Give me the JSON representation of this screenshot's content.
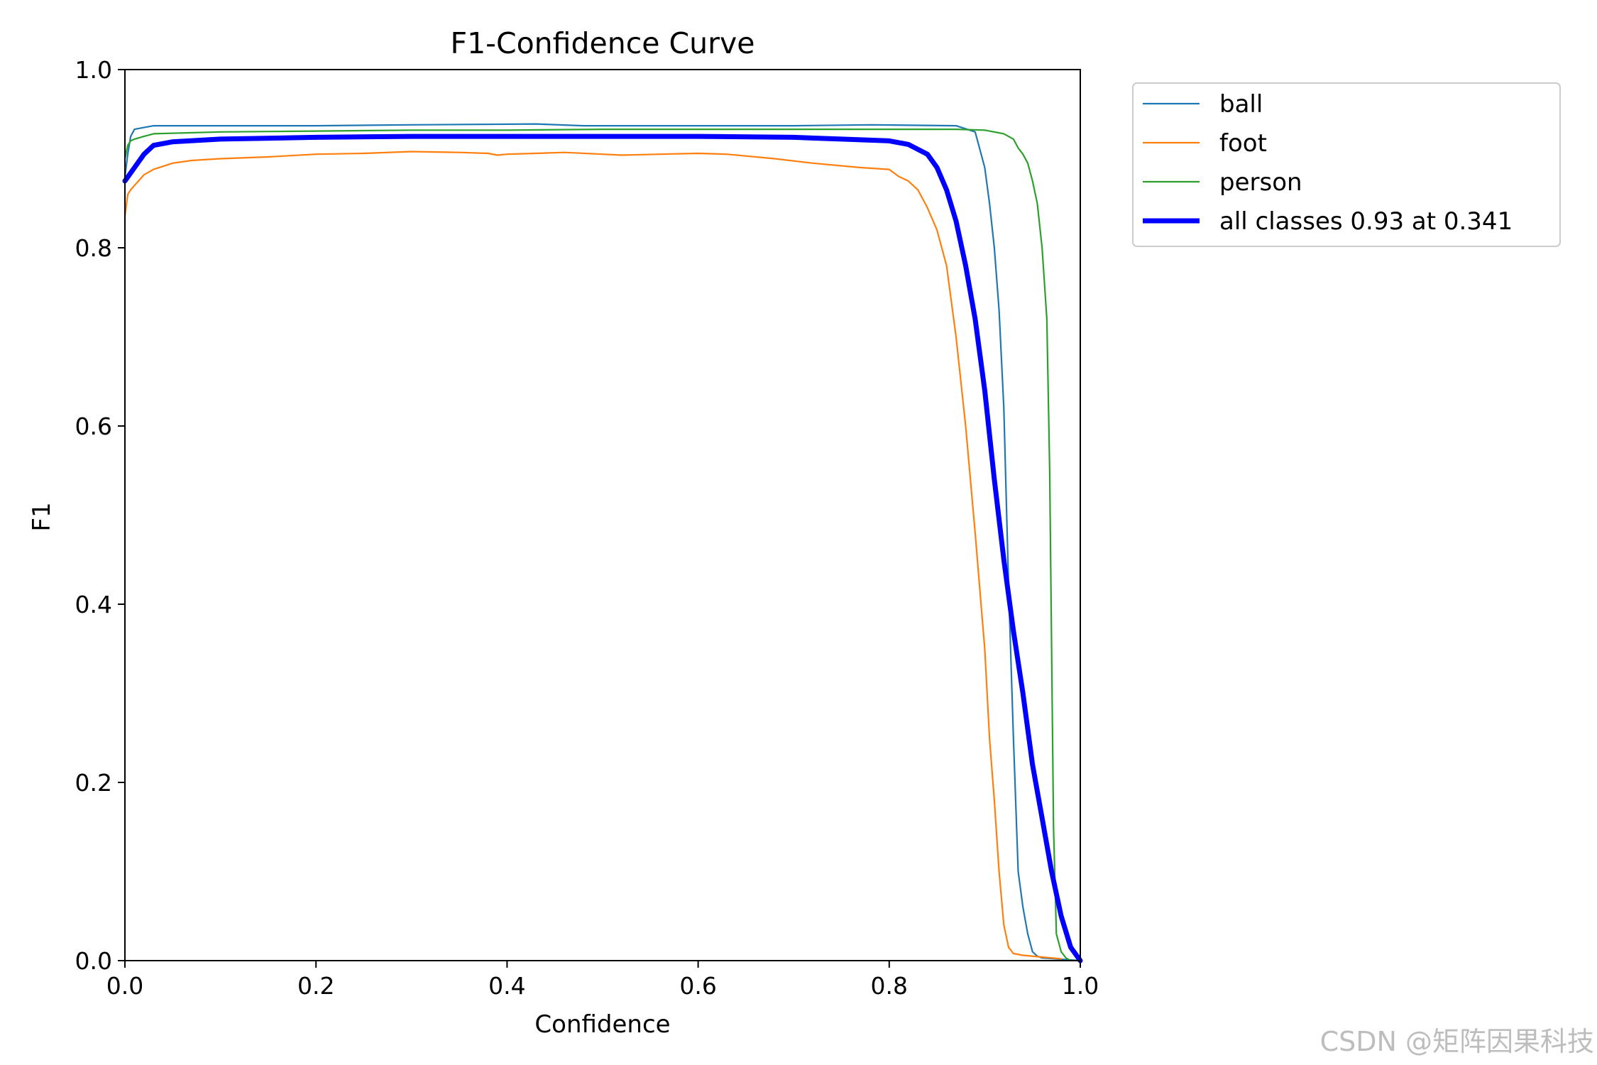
{
  "chart_data": {
    "type": "line",
    "title": "F1-Confidence Curve",
    "xlabel": "Confidence",
    "ylabel": "F1",
    "xlim": [
      0.0,
      1.0
    ],
    "ylim": [
      0.0,
      1.0
    ],
    "xticks": [
      "0.0",
      "0.2",
      "0.4",
      "0.6",
      "0.8",
      "1.0"
    ],
    "yticks": [
      "0.0",
      "0.2",
      "0.4",
      "0.6",
      "0.8",
      "1.0"
    ],
    "grid": false,
    "legend_position": "outside-top-right",
    "series": [
      {
        "name": "ball",
        "color": "#1f77b4",
        "line_width": "thin",
        "x": [
          0.0,
          0.003,
          0.006,
          0.01,
          0.02,
          0.03,
          0.1,
          0.2,
          0.3,
          0.43,
          0.48,
          0.6,
          0.7,
          0.78,
          0.87,
          0.89,
          0.895,
          0.9,
          0.905,
          0.91,
          0.915,
          0.92,
          0.925,
          0.93,
          0.935,
          0.94,
          0.945,
          0.95,
          0.955,
          0.96,
          1.0
        ],
        "y": [
          0.88,
          0.905,
          0.925,
          0.933,
          0.935,
          0.937,
          0.937,
          0.937,
          0.938,
          0.939,
          0.937,
          0.937,
          0.937,
          0.938,
          0.937,
          0.93,
          0.91,
          0.89,
          0.85,
          0.8,
          0.73,
          0.62,
          0.42,
          0.25,
          0.1,
          0.06,
          0.03,
          0.01,
          0.005,
          0.003,
          0.0
        ]
      },
      {
        "name": "foot",
        "color": "#ff7f0e",
        "line_width": "thin",
        "x": [
          0.0,
          0.003,
          0.006,
          0.01,
          0.02,
          0.03,
          0.05,
          0.07,
          0.1,
          0.15,
          0.2,
          0.25,
          0.3,
          0.35,
          0.38,
          0.39,
          0.4,
          0.43,
          0.46,
          0.5,
          0.52,
          0.56,
          0.6,
          0.63,
          0.68,
          0.72,
          0.77,
          0.8,
          0.81,
          0.82,
          0.83,
          0.84,
          0.85,
          0.86,
          0.87,
          0.88,
          0.89,
          0.9,
          0.905,
          0.91,
          0.915,
          0.92,
          0.925,
          0.93,
          0.94,
          0.96,
          0.98
        ],
        "y": [
          0.835,
          0.86,
          0.865,
          0.87,
          0.882,
          0.888,
          0.895,
          0.898,
          0.9,
          0.902,
          0.905,
          0.906,
          0.908,
          0.907,
          0.906,
          0.904,
          0.905,
          0.906,
          0.907,
          0.905,
          0.904,
          0.905,
          0.906,
          0.905,
          0.9,
          0.895,
          0.89,
          0.888,
          0.88,
          0.875,
          0.865,
          0.845,
          0.82,
          0.78,
          0.7,
          0.6,
          0.48,
          0.35,
          0.25,
          0.18,
          0.1,
          0.04,
          0.015,
          0.008,
          0.006,
          0.004,
          0.002
        ]
      },
      {
        "name": "person",
        "color": "#2ca02c",
        "line_width": "thin",
        "x": [
          0.0,
          0.003,
          0.006,
          0.01,
          0.02,
          0.03,
          0.1,
          0.2,
          0.3,
          0.4,
          0.5,
          0.6,
          0.7,
          0.8,
          0.87,
          0.9,
          0.92,
          0.93,
          0.935,
          0.94,
          0.945,
          0.95,
          0.955,
          0.96,
          0.965,
          0.968,
          0.97,
          0.972,
          0.975,
          0.98,
          0.985,
          0.99
        ],
        "y": [
          0.9,
          0.915,
          0.92,
          0.922,
          0.925,
          0.928,
          0.93,
          0.931,
          0.932,
          0.932,
          0.933,
          0.933,
          0.933,
          0.933,
          0.933,
          0.932,
          0.928,
          0.922,
          0.912,
          0.905,
          0.895,
          0.875,
          0.85,
          0.8,
          0.72,
          0.55,
          0.35,
          0.15,
          0.03,
          0.01,
          0.003,
          0.0
        ]
      },
      {
        "name": "all classes 0.93 at 0.341",
        "color": "#0000ff",
        "line_width": "thick",
        "x": [
          0.0,
          0.01,
          0.02,
          0.03,
          0.05,
          0.1,
          0.2,
          0.3,
          0.341,
          0.4,
          0.5,
          0.6,
          0.7,
          0.75,
          0.8,
          0.82,
          0.84,
          0.85,
          0.86,
          0.87,
          0.88,
          0.89,
          0.9,
          0.91,
          0.92,
          0.93,
          0.94,
          0.95,
          0.96,
          0.97,
          0.98,
          0.99,
          1.0
        ],
        "y": [
          0.875,
          0.89,
          0.905,
          0.915,
          0.919,
          0.922,
          0.924,
          0.925,
          0.925,
          0.925,
          0.925,
          0.925,
          0.924,
          0.922,
          0.92,
          0.916,
          0.905,
          0.89,
          0.865,
          0.83,
          0.78,
          0.72,
          0.64,
          0.54,
          0.45,
          0.37,
          0.3,
          0.22,
          0.16,
          0.1,
          0.05,
          0.015,
          0.0
        ]
      }
    ]
  },
  "watermark": "CSDN @矩阵因果科技"
}
